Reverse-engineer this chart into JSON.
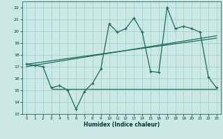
{
  "xlabel": "Humidex (Indice chaleur)",
  "bg_color": "#cce8e4",
  "grid_color": "#99cccc",
  "line_color": "#1a6b5a",
  "xlim": [
    -0.5,
    23.5
  ],
  "ylim": [
    13,
    22.5
  ],
  "xticks": [
    0,
    1,
    2,
    3,
    4,
    5,
    6,
    7,
    8,
    9,
    10,
    11,
    12,
    13,
    14,
    15,
    16,
    17,
    18,
    19,
    20,
    21,
    22,
    23
  ],
  "yticks": [
    13,
    14,
    15,
    16,
    17,
    18,
    19,
    20,
    21,
    22
  ],
  "main_x": [
    0,
    1,
    2,
    3,
    4,
    5,
    6,
    7,
    8,
    9,
    10,
    11,
    12,
    13,
    14,
    15,
    16,
    17,
    18,
    19,
    20,
    21,
    22,
    23
  ],
  "main_y": [
    17.2,
    17.1,
    17.0,
    15.2,
    15.4,
    15.0,
    13.4,
    14.9,
    15.6,
    16.8,
    20.6,
    19.9,
    20.2,
    21.1,
    19.9,
    16.6,
    16.5,
    22.0,
    20.2,
    20.4,
    20.2,
    19.9,
    16.1,
    15.2
  ],
  "trend1_x": [
    0,
    23
  ],
  "trend1_y": [
    17.2,
    19.4
  ],
  "trend2_x": [
    0,
    23
  ],
  "trend2_y": [
    17.0,
    19.6
  ],
  "hline_y": 15.1,
  "hline_x_start": 3,
  "hline_x_end": 23
}
